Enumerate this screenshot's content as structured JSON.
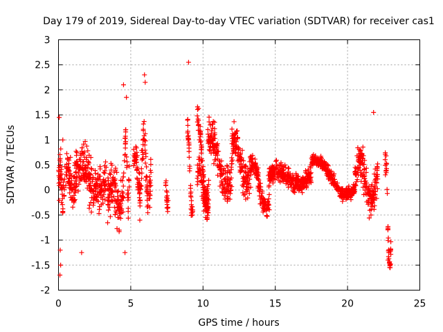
{
  "chart_data": {
    "type": "scatter",
    "title": "Day 179 of 2019, Sidereal Day-to-day VTEC variation (SDTVAR) for receiver cas1",
    "xlabel": "GPS time / hours",
    "ylabel": "SDTVAR / TECUs",
    "xlim": [
      0,
      25
    ],
    "ylim": [
      -2,
      3
    ],
    "xticks": [
      0,
      5,
      10,
      15,
      20,
      25
    ],
    "yticks": [
      -2,
      -1.5,
      -1,
      -0.5,
      0,
      0.5,
      1,
      1.5,
      2,
      2.5,
      3
    ],
    "grid": true,
    "marker": "+",
    "color": "#ff0000",
    "series": [
      {
        "name": "SDTVAR",
        "segments": [
          {
            "start": 0.0,
            "end": 0.45,
            "center": [
              -0.1,
              0.2
            ],
            "amp": 0.85,
            "spread": 0.35
          },
          {
            "start": 0.5,
            "end": 1.2,
            "center": [
              0.1,
              0.2
            ],
            "amp": 0.55,
            "spread": 0.3
          },
          {
            "start": 1.2,
            "end": 3.3,
            "center": [
              0.3,
              0.1
            ],
            "amp": 0.45,
            "spread": 0.4
          },
          {
            "start": 3.4,
            "end": 4.6,
            "center": [
              -0.3,
              0.1
            ],
            "amp": 0.6,
            "spread": 0.4
          },
          {
            "start": 4.6,
            "end": 4.9,
            "center": [
              0.6,
              0.1
            ],
            "amp": 1.0,
            "spread": 0.3
          },
          {
            "start": 5.2,
            "end": 5.8,
            "center": [
              0.3,
              0.4
            ],
            "amp": 0.9,
            "spread": 0.35
          },
          {
            "start": 5.8,
            "end": 6.4,
            "center": [
              0.6,
              0.2
            ],
            "amp": 1.1,
            "spread": 0.35
          },
          {
            "start": 7.4,
            "end": 7.6,
            "center": [
              0.0,
              -0.2
            ],
            "amp": 0.3,
            "spread": 0.15
          },
          {
            "start": 8.9,
            "end": 9.3,
            "center": [
              1.2,
              -0.6
            ],
            "amp": 0.5,
            "spread": 0.2
          },
          {
            "start": 9.6,
            "end": 10.4,
            "center": [
              1.3,
              -0.5
            ],
            "amp": 0.5,
            "spread": 0.2
          },
          {
            "start": 9.6,
            "end": 10.4,
            "center": [
              0.2,
              0.0
            ],
            "amp": 0.6,
            "spread": 0.25
          },
          {
            "start": 10.3,
            "end": 12.0,
            "center": [
              0.9,
              0.2
            ],
            "amp": 0.6,
            "spread": 0.3
          },
          {
            "start": 12.0,
            "end": 13.3,
            "center": [
              0.8,
              0.3
            ],
            "amp": 0.55,
            "spread": 0.3
          },
          {
            "start": 13.3,
            "end": 14.6,
            "center": [
              0.4,
              -0.3
            ],
            "amp": 0.5,
            "spread": 0.15
          },
          {
            "start": 14.5,
            "end": 17.5,
            "center": [
              0.2,
              0.3
            ],
            "amp": 0.3,
            "spread": 0.15
          },
          {
            "start": 17.5,
            "end": 20.5,
            "center": [
              0.5,
              -0.05
            ],
            "amp": 0.35,
            "spread": 0.1
          },
          {
            "start": 20.5,
            "end": 22.1,
            "center": [
              0.1,
              0.3
            ],
            "amp": 0.9,
            "spread": 0.3
          },
          {
            "start": 22.6,
            "end": 23.0,
            "center": [
              0.2,
              -1.3
            ],
            "amp": 1.2,
            "spread": 0.2
          }
        ],
        "points": [
          [
            0.05,
            1.45
          ],
          [
            0.1,
            -1.7
          ],
          [
            0.15,
            -1.5
          ],
          [
            0.3,
            1.0
          ],
          [
            0.12,
            -1.2
          ],
          [
            4.5,
            2.1
          ],
          [
            4.7,
            1.85
          ],
          [
            5.95,
            2.3
          ],
          [
            6.0,
            2.15
          ],
          [
            9.0,
            2.55
          ],
          [
            4.6,
            -1.25
          ],
          [
            1.6,
            -1.25
          ],
          [
            22.9,
            -1.45
          ],
          [
            22.8,
            -1.4
          ],
          [
            21.8,
            1.55
          ]
        ]
      }
    ]
  }
}
